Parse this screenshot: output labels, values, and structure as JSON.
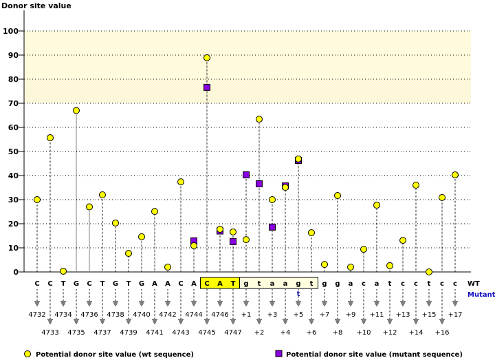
{
  "chart_data": {
    "type": "scatter",
    "title": "",
    "ylabel": "Donor site value",
    "ylim": [
      0,
      100
    ],
    "yticks": [
      0,
      10,
      20,
      30,
      40,
      50,
      60,
      70,
      80,
      90,
      100
    ],
    "grid": true,
    "bands": [
      {
        "from": 80,
        "to": 100,
        "style": "solid",
        "color": "#fffbdc"
      },
      {
        "from": 70,
        "to": 80,
        "style": "hatched",
        "color": "#fffbe6"
      }
    ],
    "positions": [
      "4732",
      "4733",
      "4734",
      "4735",
      "4736",
      "4737",
      "4738",
      "4739",
      "4740",
      "4741",
      "4742",
      "4743",
      "4744",
      "4745",
      "4746",
      "4747",
      "+1",
      "+2",
      "+3",
      "+4",
      "+5",
      "+6",
      "+7",
      "+8",
      "+9",
      "+10",
      "+11",
      "+12",
      "+13",
      "+14",
      "+15",
      "+16",
      "+17"
    ],
    "wt_bases": [
      "C",
      "C",
      "T",
      "G",
      "C",
      "T",
      "G",
      "T",
      "G",
      "A",
      "A",
      "C",
      "A",
      "C",
      "A",
      "T",
      "g",
      "t",
      "a",
      "a",
      "g",
      "t",
      "g",
      "g",
      "a",
      "c",
      "a",
      "t",
      "c",
      "c",
      "t",
      "c",
      "c"
    ],
    "mutant_bases": [
      null,
      null,
      null,
      null,
      null,
      null,
      null,
      null,
      null,
      null,
      null,
      null,
      null,
      null,
      null,
      null,
      null,
      null,
      null,
      null,
      "t",
      null,
      null,
      null,
      null,
      null,
      null,
      null,
      null,
      null,
      null,
      null,
      null
    ],
    "exon_highlight": [
      "4745",
      "4747"
    ],
    "intron_highlight": [
      "+1",
      "+6"
    ],
    "row_labels": {
      "wt": "WT",
      "mutant": "Mutant"
    },
    "series": [
      {
        "name": "Potential donor site value (wt sequence)",
        "marker": "circle",
        "color": "#ffff00",
        "values": [
          30,
          55.7,
          0.3,
          67,
          27,
          32,
          20.3,
          7.7,
          14.6,
          25.1,
          2,
          37.4,
          10.9,
          88.9,
          17.7,
          16.6,
          13.4,
          63.4,
          30,
          35.1,
          46.9,
          16.3,
          3.1,
          31.7,
          2,
          9.4,
          27.7,
          2.6,
          13.1,
          36,
          0,
          30.9,
          40.3
        ]
      },
      {
        "name": "Potential donor site value (mutant sequence)",
        "marker": "square",
        "color": "#8800dd",
        "values": [
          null,
          null,
          null,
          null,
          null,
          null,
          null,
          null,
          null,
          null,
          null,
          null,
          12.9,
          76.6,
          17,
          12.6,
          40.3,
          36.6,
          18.6,
          35.7,
          46.3,
          null,
          null,
          null,
          null,
          null,
          null,
          null,
          null,
          null,
          null,
          null,
          null
        ]
      }
    ],
    "legend_placement": "bottom"
  }
}
